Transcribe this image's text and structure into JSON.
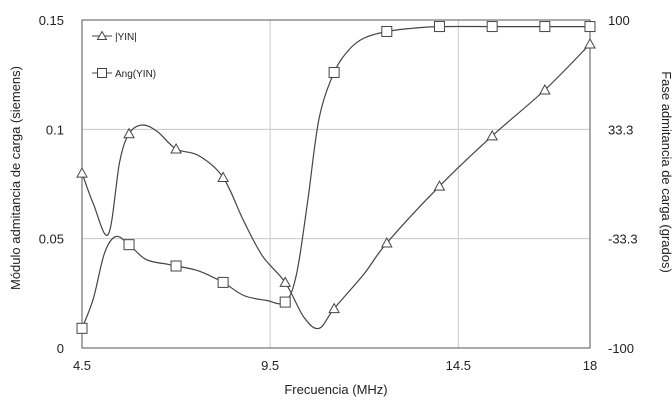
{
  "chart_data": {
    "type": "line",
    "title": "",
    "xlabel": "Frecuencia (MHz)",
    "ylabel_left": "Módulo admitancia de carga (siemens)",
    "ylabel_right": "Fase admitancia de carga (grados)",
    "xlim": [
      4.5,
      18
    ],
    "x_ticks": [
      "4.5",
      "9.5",
      "14.5",
      "18"
    ],
    "x_tick_values": [
      4.5,
      9.5,
      14.5,
      18
    ],
    "ylim_left": [
      0,
      0.15
    ],
    "y_left_ticks": [
      "0",
      "0.05",
      "0.1",
      "0.15"
    ],
    "y_left_tick_values": [
      0,
      0.05,
      0.1,
      0.15
    ],
    "ylim_right": [
      -100,
      100
    ],
    "y_right_ticks": [
      "-100",
      "-33.3",
      "33.3",
      "100"
    ],
    "y_right_tick_values": [
      -100,
      -33.3,
      33.3,
      100
    ],
    "grid": true,
    "legend_position": "top-left",
    "series": [
      {
        "name": "|YIN|",
        "axis": "left",
        "marker": "triangle",
        "markers": {
          "x": [
            4.5,
            5.75,
            7.0,
            8.25,
            9.9,
            11.2,
            12.6,
            14.0,
            15.4,
            16.8,
            18.0
          ],
          "y": [
            0.08,
            0.098,
            0.091,
            0.078,
            0.03,
            0.018,
            0.048,
            0.074,
            0.097,
            0.118,
            0.139
          ]
        },
        "curve": {
          "x": [
            4.5,
            4.8,
            5.2,
            5.5,
            5.75,
            6.1,
            6.5,
            7.0,
            7.6,
            8.25,
            8.8,
            9.3,
            9.9,
            10.4,
            10.8,
            11.2,
            12.0,
            12.6,
            14.0,
            15.4,
            16.8,
            18.0
          ],
          "y": [
            0.08,
            0.066,
            0.052,
            0.085,
            0.098,
            0.102,
            0.099,
            0.091,
            0.088,
            0.078,
            0.058,
            0.042,
            0.03,
            0.014,
            0.009,
            0.018,
            0.034,
            0.048,
            0.074,
            0.097,
            0.118,
            0.139
          ]
        }
      },
      {
        "name": "Ang(YIN)",
        "axis": "right",
        "marker": "square",
        "markers": {
          "x": [
            4.5,
            5.75,
            7.0,
            8.25,
            9.9,
            11.2,
            12.6,
            14.0,
            15.4,
            16.8,
            18.0
          ],
          "y": [
            -88,
            -37,
            -50,
            -60,
            -72,
            68,
            93,
            96,
            96,
            96,
            96
          ]
        },
        "curve": {
          "x": [
            4.5,
            4.8,
            5.1,
            5.4,
            5.75,
            6.2,
            6.8,
            7.0,
            7.6,
            8.25,
            8.8,
            9.4,
            9.9,
            10.2,
            10.5,
            10.8,
            11.2,
            11.6,
            12.0,
            12.6,
            13.3,
            14.0,
            15.4,
            16.8,
            18.0
          ],
          "y": [
            -88,
            -70,
            -42,
            -32,
            -37,
            -46,
            -49,
            -50,
            -53,
            -60,
            -68,
            -71,
            -72,
            -55,
            -10,
            40,
            68,
            82,
            89,
            93,
            95,
            96,
            96,
            96,
            96
          ]
        }
      }
    ]
  }
}
